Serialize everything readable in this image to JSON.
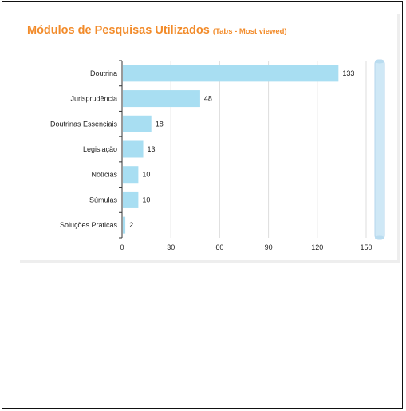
{
  "chart_data": {
    "type": "bar",
    "orientation": "horizontal",
    "title": "Módulos de Pesquisas Utilizados",
    "subtitle": "(Tabs - Most viewed)",
    "categories": [
      "Doutrina",
      "Jurisprudência",
      "Doutrinas Essenciais",
      "Legislação",
      "Notícias",
      "Súmulas",
      "Soluções Práticas"
    ],
    "values": [
      133,
      48,
      18,
      13,
      10,
      10,
      2
    ],
    "xlim": [
      0,
      150
    ],
    "xticks": [
      0,
      30,
      60,
      90,
      120,
      150
    ],
    "grid": true,
    "legend": "none",
    "colors": {
      "bar": "#a8def2",
      "title": "#f28b2a",
      "grid": "#dddddd",
      "axis": "#333333",
      "scrollbar": "#cfe8f6"
    }
  }
}
